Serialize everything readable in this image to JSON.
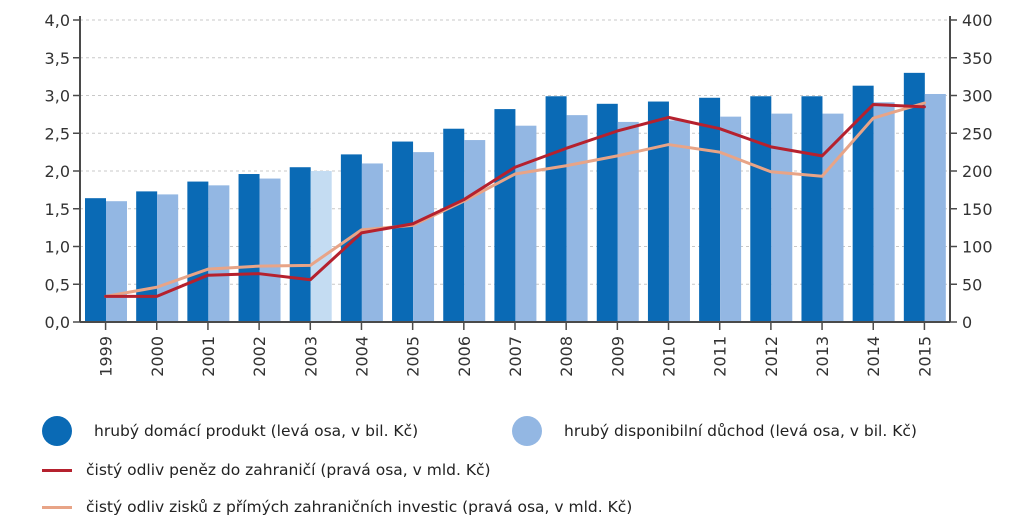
{
  "chart_data": {
    "type": "bar+line",
    "categories": [
      "1999",
      "2000",
      "2001",
      "2002",
      "2003",
      "2004",
      "2005",
      "2006",
      "2007",
      "2008",
      "2009",
      "2010",
      "2011",
      "2012",
      "2013",
      "2014",
      "2015"
    ],
    "left_axis": {
      "min": 0,
      "max": 4.0,
      "step": 0.5,
      "tick_labels": [
        "0,0",
        "0,5",
        "1,0",
        "1,5",
        "2,0",
        "2,5",
        "3,0",
        "3,5",
        "4,0"
      ]
    },
    "right_axis": {
      "min": 0,
      "max": 400,
      "step": 50,
      "tick_labels": [
        "0",
        "50",
        "100",
        "150",
        "200",
        "250",
        "300",
        "350",
        "400"
      ]
    },
    "series": [
      {
        "name": "hrubý domácí produkt (levá osa, v bil. Kč)",
        "kind": "bar",
        "axis": "left",
        "color": "#0a6ab5",
        "values": [
          1.64,
          1.73,
          1.86,
          1.96,
          2.05,
          2.22,
          2.39,
          2.56,
          2.82,
          2.99,
          2.89,
          2.92,
          2.97,
          2.99,
          2.99,
          3.13,
          3.3
        ]
      },
      {
        "name": "hrubý disponibilní důchod (levá osa, v bil. Kč)",
        "kind": "bar",
        "axis": "left",
        "color": "#93b7e3",
        "highlight_color": "#c4dcf2",
        "highlight_index": 4,
        "values": [
          1.6,
          1.69,
          1.81,
          1.9,
          2.0,
          2.1,
          2.25,
          2.41,
          2.6,
          2.74,
          2.65,
          2.67,
          2.72,
          2.76,
          2.76,
          2.91,
          3.02
        ]
      },
      {
        "name": "čistý odliv peněz do zahraničí (pravá osa, v mld. Kč)",
        "kind": "line",
        "axis": "right",
        "color": "#b5212e",
        "values": [
          34,
          34,
          62,
          64,
          56,
          118,
          130,
          162,
          205,
          230,
          253,
          271,
          256,
          232,
          220,
          288,
          285
        ]
      },
      {
        "name": "čistý odliv zisků z přímých zahraničních investic (pravá osa, v mld. Kč)",
        "kind": "line",
        "axis": "right",
        "color": "#e8a487",
        "values": [
          34,
          46,
          70,
          74,
          75,
          122,
          128,
          160,
          196,
          207,
          220,
          235,
          225,
          199,
          193,
          270,
          290
        ]
      }
    ],
    "legend": [
      "hrubý domácí produkt (levá osa, v bil. Kč)",
      "hrubý disponibilní důchod (levá osa, v bil. Kč)",
      "čistý odliv peněz do zahraničí (pravá osa, v mld. Kč)",
      "čistý odliv zisků z přímých zahraničních investic (pravá osa, v mld. Kč)"
    ],
    "grid": true
  },
  "colors": {
    "gdp": "#0a6ab5",
    "income": "#93b7e3",
    "outflow": "#b5212e",
    "profits": "#e8a487",
    "axis": "#4a4a4a",
    "grid": "#c8c8c8"
  }
}
